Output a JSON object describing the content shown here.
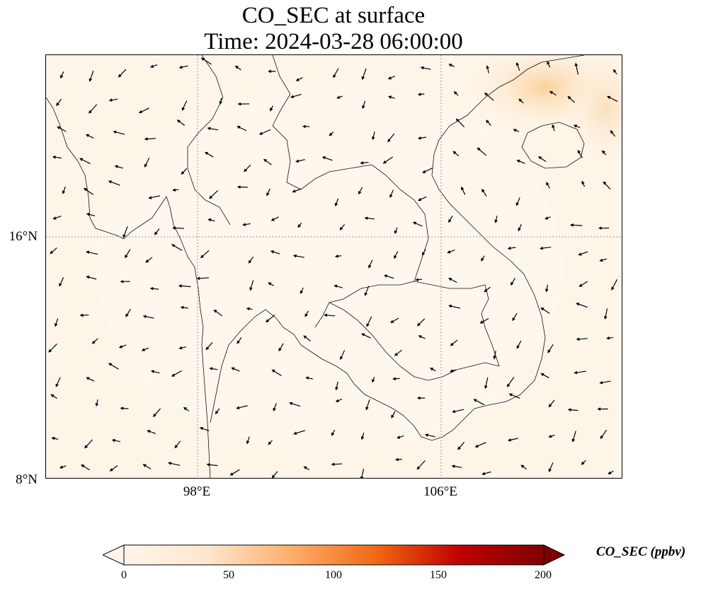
{
  "title": {
    "line1": "CO_SEC at surface",
    "line2": "Time: 2024-03-28 06:00:00"
  },
  "map": {
    "lat_labels": [
      "16°N",
      "8°N"
    ],
    "lon_labels": [
      "98°E",
      "106°E"
    ],
    "background_color": "#fef5e9",
    "hotspot_color": "#fcd9a8"
  },
  "colorbar": {
    "label": "CO_SEC (ppbv)",
    "ticks": [
      "0",
      "50",
      "100",
      "150",
      "200"
    ],
    "colors": [
      "#fff5eb",
      "#fdd0a2",
      "#fd8d3c",
      "#d94801",
      "#a50000",
      "#7f0000"
    ],
    "extend": "both"
  }
}
